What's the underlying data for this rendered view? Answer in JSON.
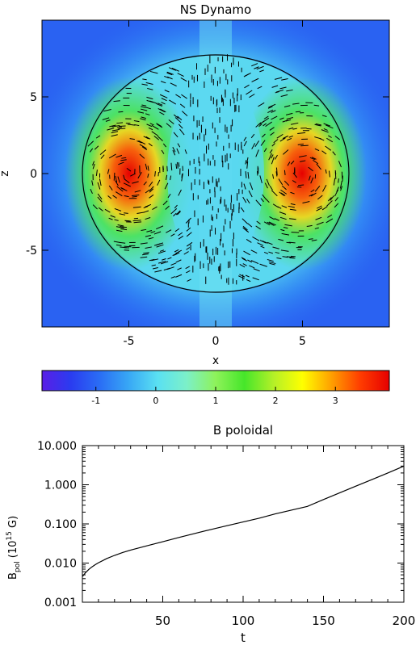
{
  "chart_data": [
    {
      "type": "heatmap",
      "title": "NS Dynamo",
      "xlabel": "x",
      "ylabel": "z",
      "xlim": [
        -10,
        10
      ],
      "ylim": [
        -10,
        10
      ],
      "x_ticks": [
        -5,
        0,
        5
      ],
      "y_ticks": [
        -5,
        0,
        5
      ],
      "colorbar": {
        "range": [
          -1.9,
          3.9
        ],
        "ticks": [
          -1,
          0,
          1,
          2,
          3
        ],
        "colors": [
          "#5a1ee6",
          "#2a3cf0",
          "#2a6ef5",
          "#38a8f5",
          "#5ae0f2",
          "#7cf0c8",
          "#8ef25a",
          "#46e62a",
          "#b4f028",
          "#ffff00",
          "#ffa000",
          "#ff3c00",
          "#e60000"
        ]
      },
      "field": {
        "background_value": -1.3,
        "sphere_radius": 7.5,
        "inner_value": 0.0,
        "vortices": [
          {
            "x": -5.0,
            "z": 0.0,
            "peak": 3.8
          },
          {
            "x": 5.0,
            "z": 0.0,
            "peak": 3.8
          }
        ]
      },
      "grid": false
    },
    {
      "type": "line",
      "title": "B poloidal",
      "xlabel": "t",
      "ylabel": "B",
      "ylabel_sub": "pol",
      "ylabel_unit_open": " (10",
      "ylabel_unit_exp": "15",
      "ylabel_unit_close": " G)",
      "xlim": [
        0,
        200
      ],
      "ylim": [
        0.001,
        10.0
      ],
      "yscale": "log",
      "x_ticks": [
        "50",
        "100",
        "150",
        "200"
      ],
      "y_ticks": [
        "0.001",
        "0.010",
        "0.100",
        "1.000",
        "10.000"
      ],
      "series": [
        {
          "x": [
            0,
            2,
            4,
            6,
            8,
            10,
            15,
            20,
            25,
            30,
            40,
            50,
            60,
            70,
            80,
            90,
            100,
            110,
            120,
            130,
            140,
            150,
            160,
            170,
            180,
            190,
            200
          ],
          "values": [
            0.0045,
            0.0057,
            0.0069,
            0.008,
            0.0091,
            0.0102,
            0.0129,
            0.0157,
            0.0186,
            0.0215,
            0.0275,
            0.035,
            0.045,
            0.057,
            0.072,
            0.09,
            0.112,
            0.14,
            0.18,
            0.225,
            0.28,
            0.42,
            0.62,
            0.92,
            1.35,
            2.0,
            3.0
          ]
        }
      ],
      "grid": false
    }
  ]
}
